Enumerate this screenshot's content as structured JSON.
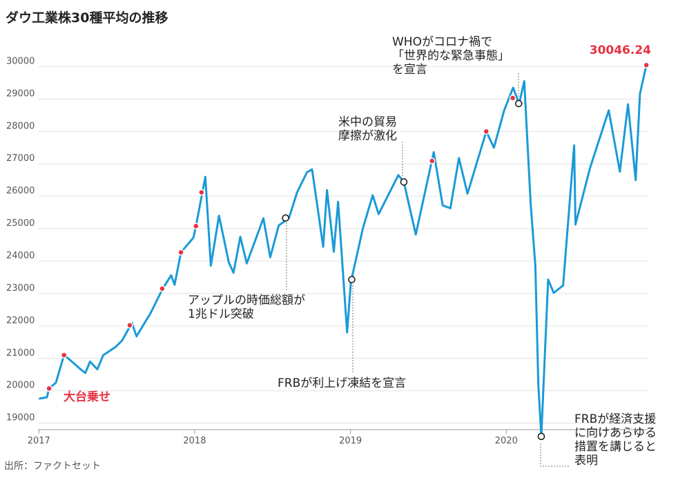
{
  "chart_data": {
    "type": "line",
    "title": "ダウ工業株30種平均の推移",
    "source": "出所：ファクトセット",
    "ylim": [
      18800,
      30350
    ],
    "xlim": [
      "2016-12-30",
      "2020-11-27"
    ],
    "y_ticks": [
      "19000",
      "20000",
      "21000",
      "22000",
      "23000",
      "24000",
      "25000",
      "26000",
      "27000",
      "28000",
      "29000",
      "30000"
    ],
    "x_ticks": [
      "2017",
      "2018",
      "2019",
      "2020"
    ],
    "grid": true,
    "series": [
      {
        "color": "#1a9ad7",
        "points": [
          [
            "2017-01-03",
            19760
          ],
          [
            "2017-01-20",
            19800
          ],
          [
            "2017-01-25",
            20070
          ],
          [
            "2017-02-10",
            20250
          ],
          [
            "2017-03-01",
            21100
          ],
          [
            "2017-03-15",
            20950
          ],
          [
            "2017-04-10",
            20650
          ],
          [
            "2017-04-20",
            20550
          ],
          [
            "2017-05-01",
            20900
          ],
          [
            "2017-05-18",
            20660
          ],
          [
            "2017-06-01",
            21100
          ],
          [
            "2017-06-30",
            21350
          ],
          [
            "2017-07-15",
            21550
          ],
          [
            "2017-08-07",
            22090
          ],
          [
            "2017-08-18",
            21680
          ],
          [
            "2017-09-01",
            21990
          ],
          [
            "2017-09-20",
            22400
          ],
          [
            "2017-10-18",
            23150
          ],
          [
            "2017-11-07",
            23560
          ],
          [
            "2017-11-15",
            23270
          ],
          [
            "2017-11-30",
            24270
          ],
          [
            "2017-12-29",
            24720
          ],
          [
            "2018-01-04",
            25080
          ],
          [
            "2018-01-26",
            26600
          ],
          [
            "2018-02-08",
            23860
          ],
          [
            "2018-02-27",
            25400
          ],
          [
            "2018-03-22",
            23960
          ],
          [
            "2018-04-02",
            23640
          ],
          [
            "2018-04-18",
            24750
          ],
          [
            "2018-05-03",
            23930
          ],
          [
            "2018-06-11",
            25320
          ],
          [
            "2018-06-27",
            24120
          ],
          [
            "2018-07-17",
            25100
          ],
          [
            "2018-08-10",
            25330
          ],
          [
            "2018-08-29",
            26120
          ],
          [
            "2018-09-21",
            26740
          ],
          [
            "2018-10-03",
            26830
          ],
          [
            "2018-10-29",
            24440
          ],
          [
            "2018-11-07",
            26190
          ],
          [
            "2018-11-23",
            24290
          ],
          [
            "2018-12-03",
            25830
          ],
          [
            "2018-12-24",
            21800
          ],
          [
            "2019-01-02",
            23350
          ],
          [
            "2019-01-30",
            25010
          ],
          [
            "2019-02-22",
            26030
          ],
          [
            "2019-03-08",
            25450
          ],
          [
            "2019-04-23",
            26650
          ],
          [
            "2019-05-06",
            26440
          ],
          [
            "2019-06-03",
            24820
          ],
          [
            "2019-07-15",
            27360
          ],
          [
            "2019-08-05",
            25720
          ],
          [
            "2019-08-23",
            25630
          ],
          [
            "2019-09-12",
            27180
          ],
          [
            "2019-10-02",
            26080
          ],
          [
            "2019-11-15",
            28000
          ],
          [
            "2019-12-03",
            27500
          ],
          [
            "2019-12-27",
            28650
          ],
          [
            "2020-01-17",
            29350
          ],
          [
            "2020-01-31",
            28850
          ],
          [
            "2020-02-12",
            29550
          ],
          [
            "2020-02-27",
            25770
          ],
          [
            "2020-03-09",
            23850
          ],
          [
            "2020-03-16",
            20190
          ],
          [
            "2020-03-23",
            18590
          ],
          [
            "2020-04-08",
            23430
          ],
          [
            "2020-04-21",
            23020
          ],
          [
            "2020-05-13",
            23250
          ],
          [
            "2020-06-08",
            27570
          ],
          [
            "2020-06-11",
            25130
          ],
          [
            "2020-07-15",
            26870
          ],
          [
            "2020-08-28",
            28650
          ],
          [
            "2020-09-23",
            26760
          ],
          [
            "2020-10-12",
            28840
          ],
          [
            "2020-10-30",
            26500
          ],
          [
            "2020-11-09",
            29160
          ],
          [
            "2020-11-24",
            30046.24
          ]
        ]
      }
    ],
    "milestones": [
      {
        "date": "2017-01-25",
        "value": 20070
      },
      {
        "date": "2017-03-01",
        "value": 21100
      },
      {
        "date": "2017-08-02",
        "value": 22020
      },
      {
        "date": "2017-10-17",
        "value": 23150
      },
      {
        "date": "2017-11-30",
        "value": 24270
      },
      {
        "date": "2018-01-04",
        "value": 25080
      },
      {
        "date": "2018-01-17",
        "value": 26120
      },
      {
        "date": "2019-07-11",
        "value": 27090
      },
      {
        "date": "2019-11-15",
        "value": 28000
      },
      {
        "date": "2020-01-16",
        "value": 29030
      },
      {
        "date": "2020-11-24",
        "value": 30046.24
      }
    ],
    "events": [
      {
        "date": "2018-08-02",
        "value": 25330,
        "lines": [
          "アップルの時価総額が",
          "1兆ドル突破"
        ]
      },
      {
        "date": "2019-01-04",
        "value": 23430,
        "lines": [
          "FRBが利上げ凍結を宣言"
        ]
      },
      {
        "date": "2019-05-06",
        "value": 26440,
        "lines": [
          "米中の貿易",
          "摩擦が激化"
        ]
      },
      {
        "date": "2020-01-30",
        "value": 28860,
        "lines": [
          "WHOがコロナ禍で",
          "「世界的な緊急事態」",
          "を宣言"
        ]
      },
      {
        "date": "2020-03-23",
        "value": 18590,
        "lines": [
          "FRBが経済支援",
          "に向けあらゆる",
          "措置を講じると",
          "表明"
        ]
      }
    ],
    "labels": {
      "first_milestone": "大台乗せ",
      "last_value": "30046.24"
    }
  }
}
